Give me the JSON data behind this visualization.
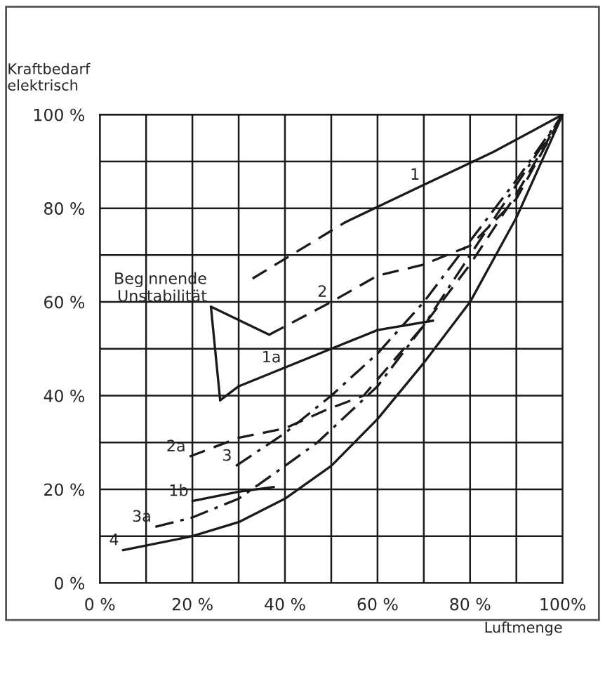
{
  "chart_data": {
    "type": "line",
    "xlabel": "Luftmenge",
    "ylabel": "Kraftbedarf\nelektrisch",
    "xlim": [
      0,
      100
    ],
    "ylim": [
      0,
      100
    ],
    "xticks": [
      {
        "value": 0,
        "label": "0 %"
      },
      {
        "value": 10,
        "label": null
      },
      {
        "value": 20,
        "label": "20 %"
      },
      {
        "value": 30,
        "label": null
      },
      {
        "value": 40,
        "label": "40 %"
      },
      {
        "value": 50,
        "label": null
      },
      {
        "value": 60,
        "label": "60 %"
      },
      {
        "value": 70,
        "label": null
      },
      {
        "value": 80,
        "label": "80 %"
      },
      {
        "value": 90,
        "label": null
      },
      {
        "value": 100,
        "label": "100%"
      }
    ],
    "yticks": [
      {
        "value": 0,
        "label": "0 %"
      },
      {
        "value": 10,
        "label": null
      },
      {
        "value": 20,
        "label": "20 %"
      },
      {
        "value": 30,
        "label": null
      },
      {
        "value": 40,
        "label": "40 %"
      },
      {
        "value": 50,
        "label": null
      },
      {
        "value": 60,
        "label": "60 %"
      },
      {
        "value": 70,
        "label": null
      },
      {
        "value": 80,
        "label": "80 %"
      },
      {
        "value": 90,
        "label": null
      },
      {
        "value": 100,
        "label": "100 %"
      }
    ],
    "grid": true,
    "legend": false,
    "marker": "none",
    "series": [
      {
        "color": "#1a1a1a",
        "line_style": "dashed",
        "x": [
          33,
          53
        ],
        "values": [
          65,
          77
        ]
      },
      {
        "color": "#1a1a1a",
        "line_style": "solid",
        "x": [
          53,
          70,
          85,
          100
        ],
        "values": [
          77,
          85,
          92,
          100
        ]
      },
      {
        "color": "#1a1a1a",
        "line_style": "dashed",
        "x": [
          36.6,
          50,
          60,
          70,
          80,
          90,
          100
        ],
        "values": [
          53,
          60,
          65.6,
          68,
          72,
          82,
          100
        ]
      },
      {
        "color": "#1a1a1a",
        "line_style": "solid",
        "x": [
          26,
          30,
          40,
          50,
          60,
          72
        ],
        "values": [
          39,
          42,
          46,
          50,
          54,
          56
        ]
      },
      {
        "color": "#1a1a1a",
        "line_style": "dashed",
        "x": [
          19.4,
          30,
          40,
          49,
          57,
          70,
          80,
          90,
          100
        ],
        "values": [
          27,
          31,
          33,
          37,
          40,
          55,
          68,
          83,
          100
        ]
      },
      {
        "color": "#1a1a1a",
        "line_style": "dashdot",
        "x": [
          29.4,
          40,
          50,
          60,
          70,
          80,
          90,
          100
        ],
        "values": [
          25,
          32,
          40,
          49,
          60,
          73,
          86,
          100
        ]
      },
      {
        "color": "#1a1a1a",
        "line_style": "solid",
        "x": [
          20,
          30,
          37.6
        ],
        "values": [
          17.5,
          19.5,
          20.5
        ]
      },
      {
        "color": "#1a1a1a",
        "line_style": "dashdot",
        "x": [
          12,
          20,
          30,
          40,
          47,
          60,
          70,
          80,
          90,
          100
        ],
        "values": [
          12,
          14,
          18,
          25,
          30,
          42,
          55,
          70,
          85,
          100
        ]
      },
      {
        "color": "#1a1a1a",
        "line_style": "solid",
        "x": [
          5,
          20,
          30,
          40,
          50,
          60,
          70,
          80,
          90,
          100
        ],
        "values": [
          7,
          10,
          13,
          18,
          25,
          35,
          47,
          60,
          78,
          100
        ]
      },
      {
        "color": "#1a1a1a",
        "line_style": "solid",
        "x": [
          26,
          24,
          36.6
        ],
        "values": [
          39,
          59,
          53
        ]
      }
    ],
    "annotations": [
      {
        "text": "1",
        "x": 70,
        "y": 85
      },
      {
        "text": "2",
        "x": 50,
        "y": 60
      },
      {
        "text": "1a",
        "x": 40,
        "y": 46
      },
      {
        "text": "2a",
        "x": 19.4,
        "y": 27
      },
      {
        "text": "3",
        "x": 29.4,
        "y": 25
      },
      {
        "text": "1b",
        "x": 20,
        "y": 17.5
      },
      {
        "text": "3a",
        "x": 12,
        "y": 12
      },
      {
        "text": "4",
        "x": 5,
        "y": 7
      },
      {
        "text": "Beginnende\nUnstabilität",
        "x": 24,
        "y": 59
      }
    ]
  }
}
